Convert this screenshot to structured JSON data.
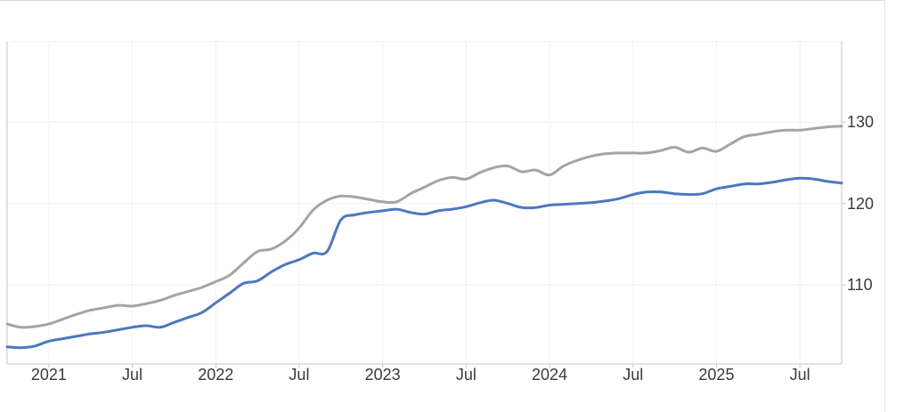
{
  "page": {
    "background": "#ffffff",
    "card": {
      "border_top_color": "#d6d6d6",
      "border_right_color": "#e3e3e3"
    }
  },
  "colors": {
    "axis_text": "#3a3a3a",
    "grid": "#dcdcdc",
    "axis_line": "#c6c6c6",
    "tick": "#c6c6c6"
  },
  "chart_data": {
    "type": "line",
    "title": "",
    "xlabel": "",
    "ylabel": "",
    "frequency": "monthly",
    "grid": "dotted",
    "legend": "none",
    "ylim": [
      100.3,
      139.9
    ],
    "y_ticks": [
      {
        "label": "130",
        "value": 130
      },
      {
        "label": "120",
        "value": 120
      },
      {
        "label": "110",
        "value": 110
      }
    ],
    "x_ticks": [
      {
        "label": "2021",
        "month": "2021-01"
      },
      {
        "label": "Jul",
        "month": "2021-07"
      },
      {
        "label": "2022",
        "month": "2022-01"
      },
      {
        "label": "Jul",
        "month": "2022-07"
      },
      {
        "label": "2023",
        "month": "2023-01"
      },
      {
        "label": "Jul",
        "month": "2023-07"
      },
      {
        "label": "2024",
        "month": "2024-01"
      },
      {
        "label": "Jul",
        "month": "2024-07"
      },
      {
        "label": "2025",
        "month": "2025-01"
      },
      {
        "label": "Jul",
        "month": "2025-07"
      }
    ],
    "months": [
      "2020-10",
      "2020-11",
      "2020-12",
      "2021-01",
      "2021-02",
      "2021-03",
      "2021-04",
      "2021-05",
      "2021-06",
      "2021-07",
      "2021-08",
      "2021-09",
      "2021-10",
      "2021-11",
      "2021-12",
      "2022-01",
      "2022-02",
      "2022-03",
      "2022-04",
      "2022-05",
      "2022-06",
      "2022-07",
      "2022-08",
      "2022-09",
      "2022-10",
      "2022-11",
      "2022-12",
      "2023-01",
      "2023-02",
      "2023-03",
      "2023-04",
      "2023-05",
      "2023-06",
      "2023-07",
      "2023-08",
      "2023-09",
      "2023-10",
      "2023-11",
      "2023-12",
      "2024-01",
      "2024-02",
      "2024-03",
      "2024-04",
      "2024-05",
      "2024-06",
      "2024-07",
      "2024-08",
      "2024-09",
      "2024-10",
      "2024-11",
      "2024-12",
      "2025-01",
      "2025-02",
      "2025-03",
      "2025-04",
      "2025-05",
      "2025-06",
      "2025-07",
      "2025-08",
      "2025-09",
      "2025-10"
    ],
    "series": [
      {
        "name": "gray-series",
        "color": "#a4a4a4",
        "values": [
          105.2,
          104.8,
          104.9,
          105.2,
          105.8,
          106.4,
          106.9,
          107.2,
          107.5,
          107.4,
          107.7,
          108.1,
          108.7,
          109.2,
          109.7,
          110.4,
          111.2,
          112.7,
          114.1,
          114.4,
          115.4,
          117.0,
          119.2,
          120.4,
          120.9,
          120.8,
          120.5,
          120.2,
          120.2,
          121.2,
          122.0,
          122.8,
          123.2,
          123.0,
          123.8,
          124.4,
          124.6,
          123.9,
          124.1,
          123.5,
          124.6,
          125.3,
          125.8,
          126.1,
          126.2,
          126.2,
          126.2,
          126.5,
          126.9,
          126.3,
          126.8,
          126.4,
          127.3,
          128.2,
          128.5,
          128.8,
          129.0,
          129.0,
          129.2,
          129.4,
          129.5
        ]
      },
      {
        "name": "blue-series",
        "color": "#4a78c2",
        "values": [
          102.4,
          102.3,
          102.5,
          103.1,
          103.4,
          103.7,
          104.0,
          104.2,
          104.5,
          104.8,
          105.0,
          104.8,
          105.4,
          106.0,
          106.6,
          107.8,
          109.0,
          110.2,
          110.5,
          111.6,
          112.5,
          113.1,
          113.9,
          114.1,
          118.0,
          118.6,
          118.9,
          119.1,
          119.3,
          118.9,
          118.7,
          119.1,
          119.3,
          119.6,
          120.1,
          120.4,
          120.0,
          119.5,
          119.5,
          119.8,
          119.9,
          120.0,
          120.1,
          120.3,
          120.6,
          121.1,
          121.4,
          121.4,
          121.2,
          121.1,
          121.2,
          121.8,
          122.1,
          122.4,
          122.4,
          122.6,
          122.9,
          123.1,
          123.0,
          122.7,
          122.5
        ]
      }
    ]
  }
}
